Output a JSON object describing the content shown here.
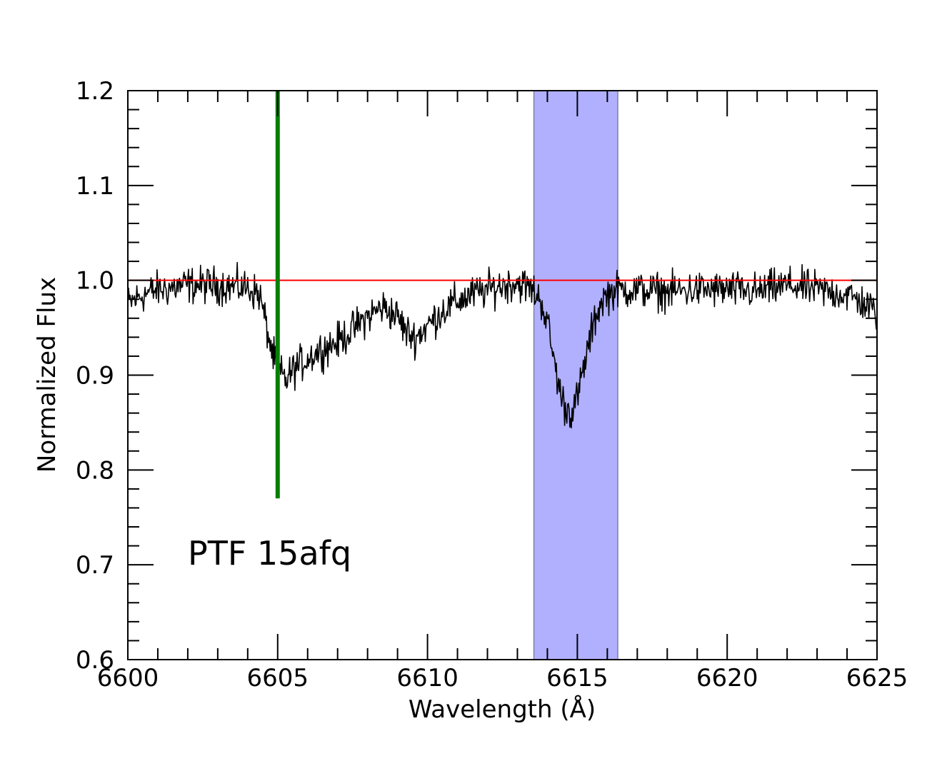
{
  "chart_data": {
    "type": "line",
    "xlabel": "Wavelength (Å)",
    "ylabel": "Normalized Flux",
    "xlim": [
      6600,
      6625
    ],
    "ylim": [
      0.6,
      1.2
    ],
    "x_ticks": [
      6600,
      6605,
      6610,
      6615,
      6620,
      6625
    ],
    "x_tick_labels": [
      "6600",
      "6605",
      "6610",
      "6615",
      "6620",
      "6625"
    ],
    "x_minor_step": 1,
    "y_ticks": [
      0.6,
      0.7,
      0.8,
      0.9,
      1.0,
      1.1,
      1.2
    ],
    "y_tick_labels": [
      "0.6",
      "0.7",
      "0.8",
      "0.9",
      "1.0",
      "1.1",
      "1.2"
    ],
    "y_minor_step": 0.02,
    "annotation": "PTF 15afq",
    "continuum": {
      "y": 1.0,
      "color": "#ff0000"
    },
    "marker_line": {
      "x": 6605.0,
      "y_range": [
        0.77,
        1.2
      ],
      "color": "#008000"
    },
    "highlight_band": {
      "x_range": [
        6613.55,
        6616.35
      ],
      "color": "#b0b0ff",
      "edge_color": "#8080a0"
    },
    "spectrum": {
      "color": "#000000",
      "noise_amplitude": 0.018,
      "continuum_anchor_points": [
        [
          6600.0,
          0.975
        ],
        [
          6600.5,
          0.985
        ],
        [
          6601.0,
          0.99
        ],
        [
          6602.0,
          0.995
        ],
        [
          6603.0,
          0.995
        ],
        [
          6604.0,
          0.992
        ],
        [
          6604.4,
          0.985
        ],
        [
          6604.6,
          0.955
        ],
        [
          6604.8,
          0.925
        ],
        [
          6605.0,
          0.905
        ],
        [
          6605.3,
          0.895
        ],
        [
          6605.5,
          0.905
        ],
        [
          6606.0,
          0.918
        ],
        [
          6606.5,
          0.928
        ],
        [
          6607.0,
          0.935
        ],
        [
          6607.5,
          0.948
        ],
        [
          6608.0,
          0.962
        ],
        [
          6608.5,
          0.972
        ],
        [
          6609.0,
          0.962
        ],
        [
          6609.3,
          0.945
        ],
        [
          6609.6,
          0.94
        ],
        [
          6610.0,
          0.952
        ],
        [
          6610.5,
          0.968
        ],
        [
          6611.0,
          0.978
        ],
        [
          6611.5,
          0.985
        ],
        [
          6612.0,
          0.99
        ],
        [
          6612.5,
          0.995
        ],
        [
          6613.0,
          0.998
        ],
        [
          6613.5,
          0.99
        ],
        [
          6613.8,
          0.978
        ],
        [
          6614.0,
          0.955
        ],
        [
          6614.2,
          0.92
        ],
        [
          6614.4,
          0.885
        ],
        [
          6614.6,
          0.865
        ],
        [
          6614.8,
          0.862
        ],
        [
          6615.0,
          0.875
        ],
        [
          6615.2,
          0.905
        ],
        [
          6615.4,
          0.935
        ],
        [
          6615.6,
          0.96
        ],
        [
          6615.8,
          0.978
        ],
        [
          6616.0,
          0.985
        ],
        [
          6616.3,
          0.99
        ],
        [
          6617.0,
          0.99
        ],
        [
          6618.0,
          0.988
        ],
        [
          6619.0,
          0.99
        ],
        [
          6620.0,
          0.99
        ],
        [
          6621.0,
          0.988
        ],
        [
          6622.0,
          0.995
        ],
        [
          6623.0,
          0.99
        ],
        [
          6624.0,
          0.985
        ],
        [
          6624.6,
          0.975
        ],
        [
          6625.0,
          0.965
        ]
      ]
    }
  }
}
